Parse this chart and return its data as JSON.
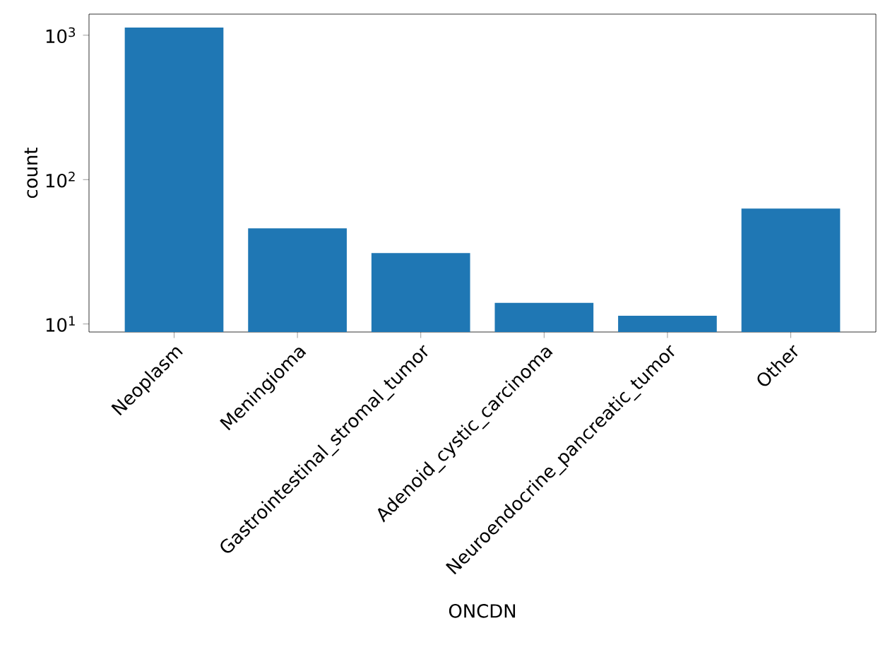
{
  "chart_data": {
    "type": "bar",
    "xlabel": "ONCDN",
    "ylabel": "count",
    "categories": [
      "Neoplasm",
      "Meningioma",
      "Gastrointestinal_stromal_tumor",
      "Adenoid_cystic_carcinoma",
      "Neuroendocrine_pancreatic_tumor",
      "Other"
    ],
    "values": [
      1130,
      46,
      31,
      14,
      11.4,
      63
    ],
    "color": "#1f77b4",
    "log": "y",
    "ylim": [
      8.8,
      1400
    ],
    "yticks": [
      {
        "value": 10,
        "label": "10$^{1}$"
      },
      {
        "value": 100,
        "label": "10$^{2}$"
      },
      {
        "value": 1000,
        "label": "10$^{3}$"
      }
    ],
    "grid": false
  }
}
